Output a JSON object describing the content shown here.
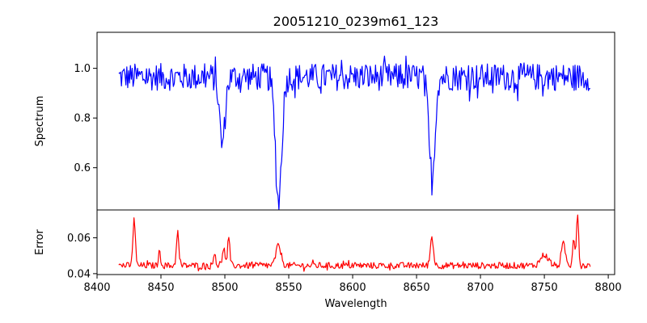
{
  "chart_data": {
    "type": "line",
    "title": "20051210_0239m61_123",
    "xlabel": "Wavelength",
    "xlim": [
      8400,
      8805
    ],
    "x_ticks": [
      "8400",
      "8450",
      "8500",
      "8550",
      "8600",
      "8650",
      "8700",
      "8750",
      "8800"
    ],
    "x_range": [
      8417,
      8786
    ],
    "panels": [
      {
        "ylabel": "Spectrum",
        "ylim": [
          0.43,
          1.145
        ],
        "y_ticks": [
          "0.6",
          "0.8",
          "1.0"
        ],
        "series": [
          {
            "color": "#0000ff",
            "baseline": 0.965,
            "noise_amplitude": 0.055,
            "features": [
              {
                "center": 8498,
                "depth": 0.27,
                "width": 2.2
              },
              {
                "center": 8542,
                "depth": 0.5,
                "width": 2.5
              },
              {
                "center": 8662,
                "depth": 0.42,
                "width": 2.3
              }
            ]
          }
        ]
      },
      {
        "ylabel": "Error",
        "ylim": [
          0.0395,
          0.0755
        ],
        "y_ticks": [
          "0.04",
          "0.06"
        ],
        "series": [
          {
            "color": "#ff0000",
            "baseline": 0.0445,
            "noise_amplitude": 0.0018,
            "features": [
              {
                "center": 8429,
                "height": 0.027,
                "width": 0.9
              },
              {
                "center": 8449,
                "height": 0.008,
                "width": 0.9
              },
              {
                "center": 8463,
                "height": 0.019,
                "width": 0.9
              },
              {
                "center": 8492,
                "height": 0.008,
                "width": 0.8
              },
              {
                "center": 8499,
                "height": 0.011,
                "width": 0.9
              },
              {
                "center": 8503,
                "height": 0.015,
                "width": 0.9
              },
              {
                "center": 8542,
                "height": 0.011,
                "width": 2.0
              },
              {
                "center": 8662,
                "height": 0.016,
                "width": 1.2
              },
              {
                "center": 8750,
                "height": 0.006,
                "width": 3.0
              },
              {
                "center": 8765,
                "height": 0.012,
                "width": 1.5
              },
              {
                "center": 8773,
                "height": 0.016,
                "width": 0.9
              },
              {
                "center": 8776,
                "height": 0.03,
                "width": 0.8
              }
            ]
          }
        ]
      }
    ]
  }
}
